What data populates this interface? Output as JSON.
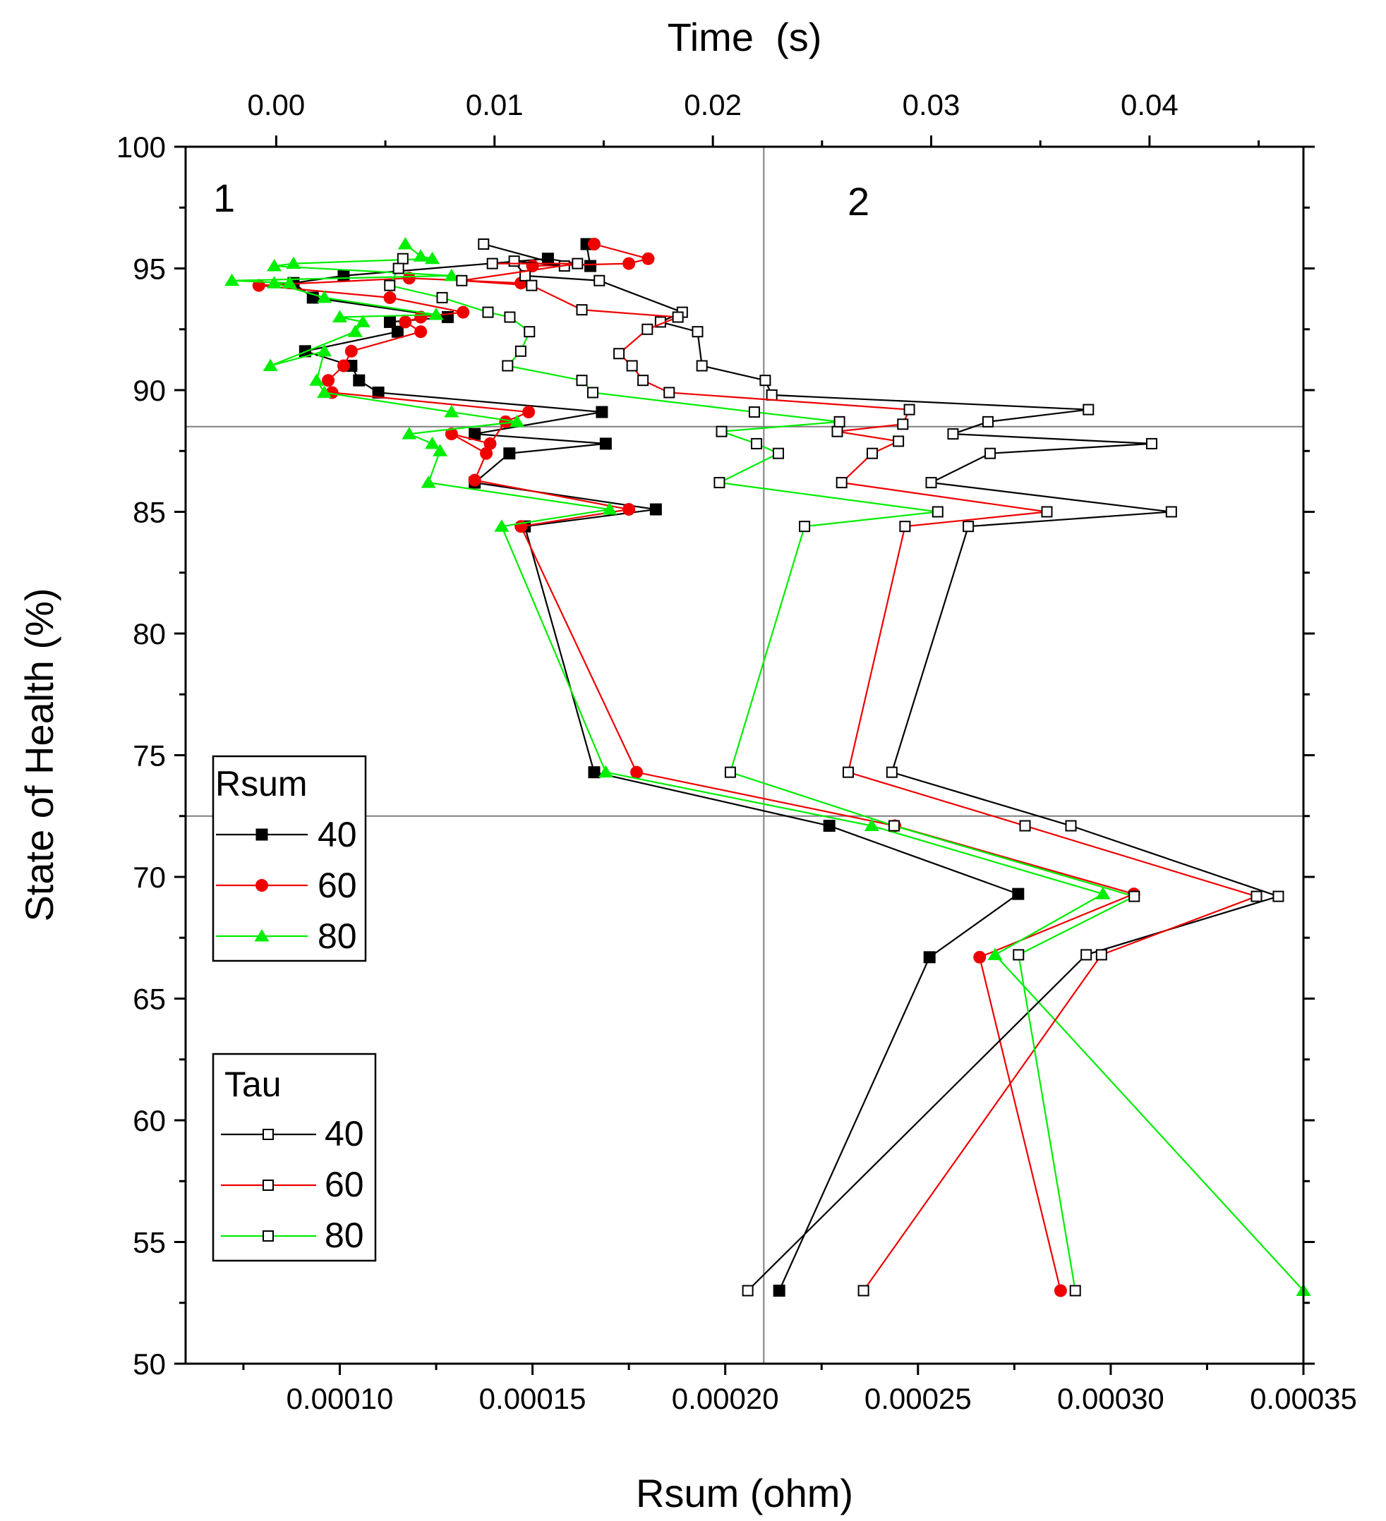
{
  "chart_data": {
    "type": "line",
    "title": "",
    "xlabel": "Rsum (ohm)",
    "x2label": "Time  (s)",
    "ylabel": "State of Health (%)",
    "xlim": [
      6e-05,
      0.00035
    ],
    "x2lim": [
      -0.00415,
      0.04705
    ],
    "ylim": [
      50,
      100
    ],
    "x_ticks": [
      {
        "value": 0.0001,
        "label": "0.00010"
      },
      {
        "value": 0.00015,
        "label": "0.00015"
      },
      {
        "value": 0.0002,
        "label": "0.00020"
      },
      {
        "value": 0.00025,
        "label": "0.00025"
      },
      {
        "value": 0.0003,
        "label": "0.00030"
      },
      {
        "value": 0.00035,
        "label": "0.00035"
      }
    ],
    "x2_ticks": [
      {
        "value": 0.0,
        "label": "0.00"
      },
      {
        "value": 0.01,
        "label": "0.01"
      },
      {
        "value": 0.02,
        "label": "0.02"
      },
      {
        "value": 0.03,
        "label": "0.03"
      },
      {
        "value": 0.04,
        "label": "0.04"
      }
    ],
    "y_ticks": [
      {
        "value": 50,
        "label": "50"
      },
      {
        "value": 55,
        "label": "55"
      },
      {
        "value": 60,
        "label": "60"
      },
      {
        "value": 65,
        "label": "65"
      },
      {
        "value": 70,
        "label": "70"
      },
      {
        "value": 75,
        "label": "75"
      },
      {
        "value": 80,
        "label": "80"
      },
      {
        "value": 85,
        "label": "85"
      },
      {
        "value": 90,
        "label": "90"
      },
      {
        "value": 95,
        "label": "95"
      },
      {
        "value": 100,
        "label": "100"
      }
    ],
    "reference_lines": {
      "vertical_x": 0.00021,
      "horizontal_y": [
        88.5,
        72.5
      ]
    },
    "regions": [
      {
        "label": "1",
        "x": 7.1e-05,
        "y": 97.7
      },
      {
        "label": "2",
        "x": 0.000234,
        "y": 97.3
      }
    ],
    "legends": [
      {
        "title": "Rsum",
        "position": "left-middle",
        "entries": [
          "40",
          "60",
          "80"
        ]
      },
      {
        "title": "Tau",
        "position": "left-lower",
        "entries": [
          "40",
          "60",
          "80"
        ]
      }
    ],
    "series": [
      {
        "name": "40",
        "group": "Rsum",
        "axis": "bottom",
        "color": "#000000",
        "marker": "square-filled",
        "points": [
          [
            0.000164,
            96.0
          ],
          [
            0.000165,
            95.1
          ],
          [
            0.000154,
            95.4
          ],
          [
            0.000101,
            94.7
          ],
          [
            8.8e-05,
            94.4
          ],
          [
            9.3e-05,
            93.8
          ],
          [
            0.000128,
            93.0
          ],
          [
            0.000113,
            92.8
          ],
          [
            0.000115,
            92.4
          ],
          [
            9.1e-05,
            91.6
          ],
          [
            0.000103,
            91.0
          ],
          [
            0.000105,
            90.4
          ],
          [
            0.00011,
            89.9
          ],
          [
            0.000168,
            89.1
          ],
          [
            0.000135,
            88.2
          ],
          [
            0.000169,
            87.8
          ],
          [
            0.000144,
            87.4
          ],
          [
            0.000135,
            86.2
          ],
          [
            0.000182,
            85.1
          ],
          [
            0.000148,
            84.4
          ],
          [
            0.000166,
            74.3
          ],
          [
            0.000227,
            72.1
          ],
          [
            0.000276,
            69.3
          ],
          [
            0.000253,
            66.7
          ],
          [
            0.000214,
            53.0
          ]
        ]
      },
      {
        "name": "60",
        "group": "Rsum",
        "axis": "bottom",
        "color": "#ee0000",
        "marker": "circle-filled",
        "points": [
          [
            0.000166,
            96.0
          ],
          [
            0.00018,
            95.4
          ],
          [
            0.000175,
            95.2
          ],
          [
            0.00015,
            95.1
          ],
          [
            0.000147,
            94.4
          ],
          [
            0.000118,
            94.6
          ],
          [
            7.9e-05,
            94.3
          ],
          [
            0.000113,
            93.8
          ],
          [
            0.000132,
            93.2
          ],
          [
            0.000121,
            93.0
          ],
          [
            0.000117,
            92.8
          ],
          [
            0.000121,
            92.4
          ],
          [
            0.000103,
            91.6
          ],
          [
            0.000101,
            91.0
          ],
          [
            9.7e-05,
            90.4
          ],
          [
            9.8e-05,
            89.9
          ],
          [
            0.000149,
            89.1
          ],
          [
            0.000143,
            88.7
          ],
          [
            0.000139,
            87.8
          ],
          [
            0.000129,
            88.2
          ],
          [
            0.000138,
            87.4
          ],
          [
            0.000135,
            86.3
          ],
          [
            0.000175,
            85.1
          ],
          [
            0.000147,
            84.4
          ],
          [
            0.000177,
            74.3
          ],
          [
            0.000244,
            72.1
          ],
          [
            0.000306,
            69.3
          ],
          [
            0.000266,
            66.7
          ],
          [
            0.000287,
            53.0
          ]
        ]
      },
      {
        "name": "80",
        "group": "Rsum",
        "axis": "bottom",
        "color": "#00ee00",
        "marker": "triangle-filled",
        "points": [
          [
            0.000117,
            96.0
          ],
          [
            0.000121,
            95.5
          ],
          [
            0.000124,
            95.4
          ],
          [
            8.8e-05,
            95.2
          ],
          [
            8.3e-05,
            95.1
          ],
          [
            0.000129,
            94.7
          ],
          [
            7.2e-05,
            94.5
          ],
          [
            8.7e-05,
            94.4
          ],
          [
            8.3e-05,
            94.4
          ],
          [
            9.6e-05,
            93.8
          ],
          [
            0.000125,
            93.1
          ],
          [
            0.0001,
            93.0
          ],
          [
            0.000106,
            92.8
          ],
          [
            0.000104,
            92.4
          ],
          [
            8.2e-05,
            91.0
          ],
          [
            9.6e-05,
            91.6
          ],
          [
            9.4e-05,
            90.4
          ],
          [
            9.6e-05,
            89.9
          ],
          [
            0.000129,
            89.1
          ],
          [
            0.000146,
            88.7
          ],
          [
            0.000118,
            88.2
          ],
          [
            0.000124,
            87.8
          ],
          [
            0.000126,
            87.5
          ],
          [
            0.000123,
            86.2
          ],
          [
            0.00017,
            85.1
          ],
          [
            0.000142,
            84.4
          ],
          [
            0.000169,
            74.3
          ],
          [
            0.000238,
            72.1
          ],
          [
            0.000298,
            69.3
          ],
          [
            0.00027,
            66.8
          ],
          [
            0.00035,
            53.0
          ]
        ]
      },
      {
        "name": "40",
        "group": "Tau",
        "axis": "top",
        "color": "#000000",
        "marker": "square-open",
        "points": [
          [
            0.0095,
            96.0
          ],
          [
            0.0132,
            95.1
          ],
          [
            0.0109,
            95.3
          ],
          [
            0.0114,
            94.7
          ],
          [
            0.0148,
            94.5
          ],
          [
            0.0186,
            93.2
          ],
          [
            0.0176,
            92.8
          ],
          [
            0.0193,
            92.4
          ],
          [
            0.0195,
            91.0
          ],
          [
            0.0224,
            90.4
          ],
          [
            0.0227,
            89.8
          ],
          [
            0.0372,
            89.2
          ],
          [
            0.0326,
            88.7
          ],
          [
            0.031,
            88.2
          ],
          [
            0.0401,
            87.8
          ],
          [
            0.0327,
            87.4
          ],
          [
            0.03,
            86.2
          ],
          [
            0.041,
            85.0
          ],
          [
            0.0317,
            84.4
          ],
          [
            0.0282,
            74.3
          ],
          [
            0.0364,
            72.1
          ],
          [
            0.0459,
            69.2
          ],
          [
            0.0371,
            66.8
          ],
          [
            0.0216,
            53.0
          ]
        ]
      },
      {
        "name": "60",
        "group": "Tau",
        "axis": "top",
        "color": "#ee0000",
        "marker": "square-open",
        "points": [
          [
            0.0099,
            95.2
          ],
          [
            0.0138,
            95.2
          ],
          [
            0.0085,
            94.5
          ],
          [
            0.0117,
            94.3
          ],
          [
            0.014,
            93.3
          ],
          [
            0.0184,
            93.0
          ],
          [
            0.017,
            92.5
          ],
          [
            0.0157,
            91.5
          ],
          [
            0.0163,
            91.0
          ],
          [
            0.0168,
            90.4
          ],
          [
            0.018,
            89.9
          ],
          [
            0.029,
            89.2
          ],
          [
            0.0287,
            88.6
          ],
          [
            0.0257,
            88.3
          ],
          [
            0.0285,
            87.9
          ],
          [
            0.0273,
            87.4
          ],
          [
            0.0259,
            86.2
          ],
          [
            0.0353,
            85.0
          ],
          [
            0.0288,
            84.4
          ],
          [
            0.0262,
            74.3
          ],
          [
            0.0343,
            72.1
          ],
          [
            0.0449,
            69.2
          ],
          [
            0.0378,
            66.8
          ],
          [
            0.0269,
            53.0
          ]
        ]
      },
      {
        "name": "80",
        "group": "Tau",
        "axis": "top",
        "color": "#00ee00",
        "marker": "square-open",
        "points": [
          [
            0.0058,
            95.4
          ],
          [
            0.0056,
            95.0
          ],
          [
            0.0052,
            94.3
          ],
          [
            0.0076,
            93.8
          ],
          [
            0.0097,
            93.2
          ],
          [
            0.0107,
            93.0
          ],
          [
            0.0116,
            92.4
          ],
          [
            0.0112,
            91.6
          ],
          [
            0.0106,
            91.0
          ],
          [
            0.014,
            90.4
          ],
          [
            0.0145,
            89.9
          ],
          [
            0.0219,
            89.1
          ],
          [
            0.0258,
            88.7
          ],
          [
            0.0204,
            88.3
          ],
          [
            0.022,
            87.8
          ],
          [
            0.023,
            87.4
          ],
          [
            0.0203,
            86.2
          ],
          [
            0.0303,
            85.0
          ],
          [
            0.0242,
            84.4
          ],
          [
            0.0208,
            74.3
          ],
          [
            0.0283,
            72.1
          ],
          [
            0.0393,
            69.2
          ],
          [
            0.034,
            66.8
          ],
          [
            0.0366,
            53.0
          ]
        ]
      }
    ]
  }
}
